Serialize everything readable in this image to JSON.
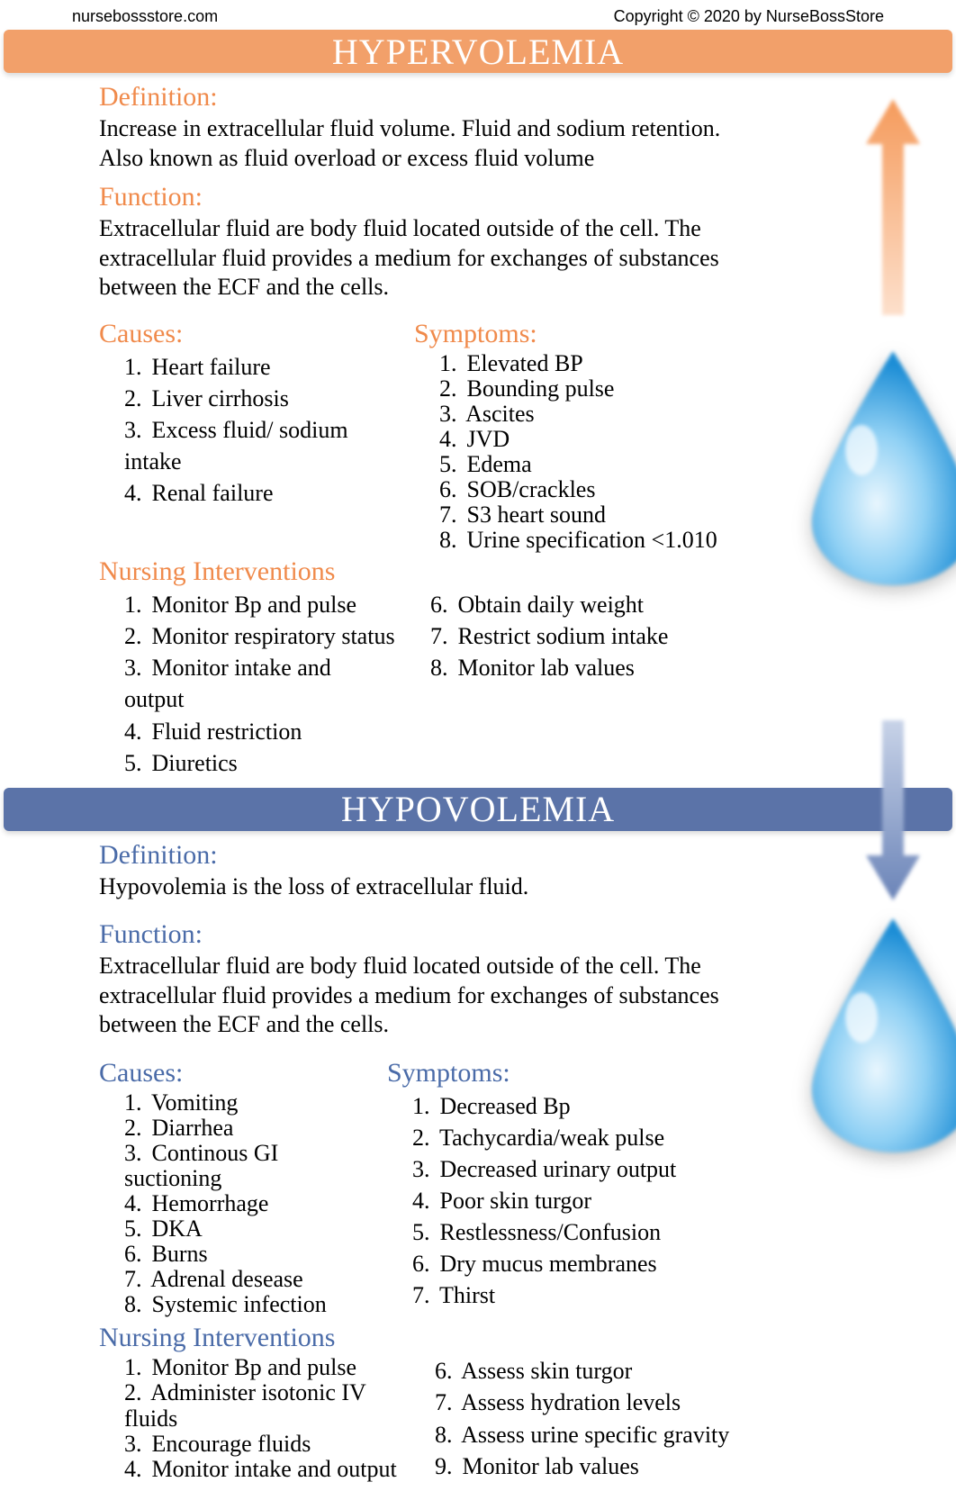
{
  "header": {
    "site": "nursebossstore.com",
    "copyright": "Copyright © 2020 by NurseBossStore"
  },
  "colors": {
    "hyper_accent": "#f08a4b",
    "hyper_bar": "#f2a06a",
    "hypo_accent": "#4a6ba8",
    "hypo_bar": "#5b73a8",
    "text": "#000000",
    "bg": "#ffffff",
    "arrow_orange": "#f59b5c",
    "arrow_blue": "#6b84b8",
    "drop_light": "#b9e2f9",
    "drop_dark": "#1d8ed6"
  },
  "hyper": {
    "title": "HYPERVOLEMIA",
    "definition_h": "Definition:",
    "definition": "Increase in extracellular fluid volume. Fluid and sodium retention. Also known as fluid overload or excess fluid volume",
    "function_h": "Function:",
    "function": "Extracellular fluid are body fluid located outside of the cell. The extracellular fluid provides a medium for exchanges of substances between the ECF and the cells.",
    "causes_h": "Causes:",
    "causes": [
      "Heart failure",
      "Liver cirrhosis",
      "Excess fluid/ sodium intake",
      "Renal failure"
    ],
    "symptoms_h": "Symptoms:",
    "symptoms": [
      "Elevated BP",
      "Bounding pulse",
      "Ascites",
      "JVD",
      "Edema",
      "SOB/crackles",
      "S3 heart sound",
      "Urine specification <1.010"
    ],
    "interventions_h": "Nursing Interventions",
    "interventions_a": [
      "Monitor Bp and pulse",
      "Monitor respiratory status",
      "Monitor intake and output",
      "Fluid restriction",
      "Diuretics"
    ],
    "interventions_b": [
      "Obtain daily weight",
      "Restrict sodium intake",
      "Monitor lab values"
    ],
    "interventions_b_start": 6
  },
  "hypo": {
    "title": "HYPOVOLEMIA",
    "definition_h": "Definition:",
    "definition": "Hypovolemia is the loss of extracellular fluid.",
    "function_h": "Function:",
    "function": "Extracellular fluid are body fluid located outside of the cell. The extracellular fluid provides a medium for exchanges of substances between the ECF and the cells.",
    "causes_h": "Causes:",
    "causes": [
      "Vomiting",
      "Diarrhea",
      "Continous GI suctioning",
      "Hemorrhage",
      "DKA",
      "Burns",
      "Adrenal desease",
      "Systemic infection"
    ],
    "symptoms_h": "Symptoms:",
    "symptoms": [
      "Decreased Bp",
      "Tachycardia/weak pulse",
      "Decreased urinary output",
      "Poor skin turgor",
      "Restlessness/Confusion",
      "Dry mucus membranes",
      "Thirst"
    ],
    "interventions_h": "Nursing Interventions",
    "interventions_a": [
      "Monitor Bp and pulse",
      "Administer isotonic IV fluids",
      "Encourage fluids",
      "Monitor intake and output"
    ],
    "interventions_b": [
      "Assess skin turgor",
      "Assess hydration levels",
      "Assess urine specific gravity",
      "Monitor lab values"
    ],
    "interventions_b_start": 6
  }
}
